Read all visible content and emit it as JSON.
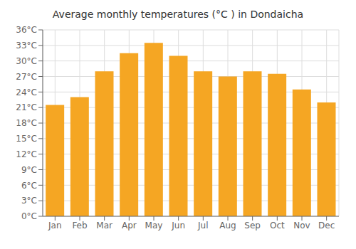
{
  "chart_data": {
    "type": "bar",
    "title": "Average monthly temperatures (°C ) in Dondaicha",
    "categories": [
      "Jan",
      "Feb",
      "Mar",
      "Apr",
      "May",
      "Jun",
      "Jul",
      "Aug",
      "Sep",
      "Oct",
      "Nov",
      "Dec"
    ],
    "values": [
      21.5,
      23.0,
      28.0,
      31.5,
      33.5,
      31.0,
      28.0,
      27.0,
      28.0,
      27.5,
      24.5,
      22.0
    ],
    "color": "#F5A623",
    "ylim": [
      0,
      36
    ],
    "yticks": [
      {
        "value": 0,
        "label": "0°C"
      },
      {
        "value": 3,
        "label": "3°C"
      },
      {
        "value": 6,
        "label": "6°C"
      },
      {
        "value": 9,
        "label": "9°C"
      },
      {
        "value": 12,
        "label": "12°C"
      },
      {
        "value": 15,
        "label": "15°C"
      },
      {
        "value": 18,
        "label": "18°C"
      },
      {
        "value": 21,
        "label": "21°C"
      },
      {
        "value": 24,
        "label": "24°C"
      },
      {
        "value": 27,
        "label": "27°C"
      },
      {
        "value": 30,
        "label": "30°C"
      },
      {
        "value": 33,
        "label": "33°C"
      },
      {
        "value": 36,
        "label": "36°C"
      }
    ],
    "grid": true
  }
}
